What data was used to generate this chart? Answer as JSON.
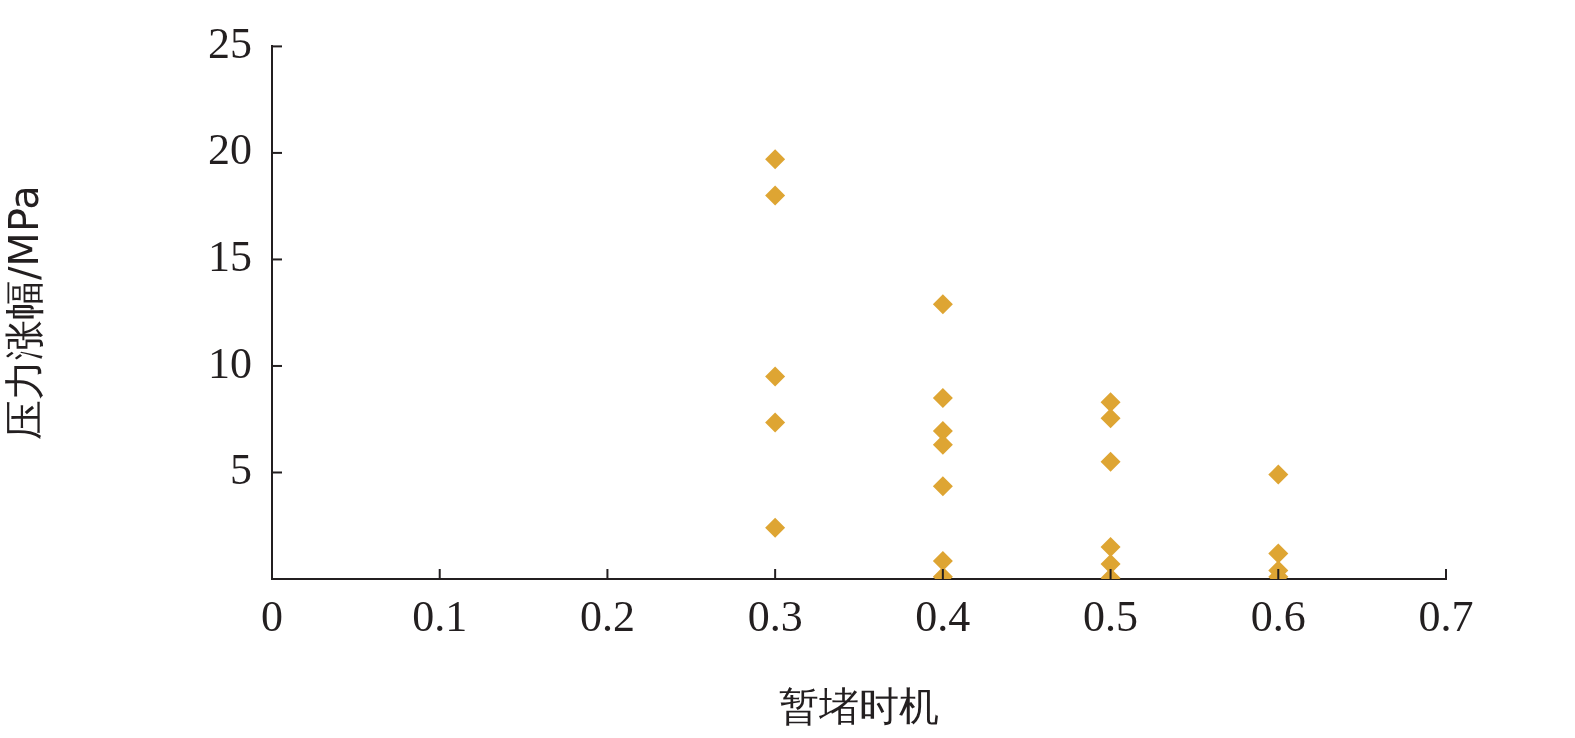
{
  "chart_data": {
    "type": "scatter",
    "xlabel": "暂堵时机",
    "ylabel": "压力涨幅/MPa",
    "marker": "diamond",
    "grid": false,
    "xlim": [
      0,
      0.7
    ],
    "xticks": [
      0,
      0.1,
      0.2,
      0.3,
      0.4,
      0.5,
      0.6,
      0.7
    ],
    "ylim": [
      0,
      25
    ],
    "yticks": [
      {
        "value": 0,
        "label": null
      },
      5,
      10,
      15,
      20,
      25
    ],
    "series": [
      {
        "color": "#dea533",
        "x": [
          0.3,
          0.3,
          0.3,
          0.3,
          0.3,
          0.4,
          0.4,
          0.4,
          0.4,
          0.4,
          0.4,
          0.4,
          0.5,
          0.5,
          0.5,
          0.5,
          0.5,
          0.5,
          0.6,
          0.6,
          0.6,
          0.6
        ],
        "values": [
          19.7,
          18.0,
          9.5,
          7.35,
          2.4,
          12.9,
          8.5,
          6.95,
          6.3,
          4.35,
          0.85,
          0.1,
          8.3,
          7.55,
          5.5,
          1.5,
          0.7,
          0.05,
          4.9,
          1.2,
          0.4,
          0.1
        ]
      }
    ]
  }
}
